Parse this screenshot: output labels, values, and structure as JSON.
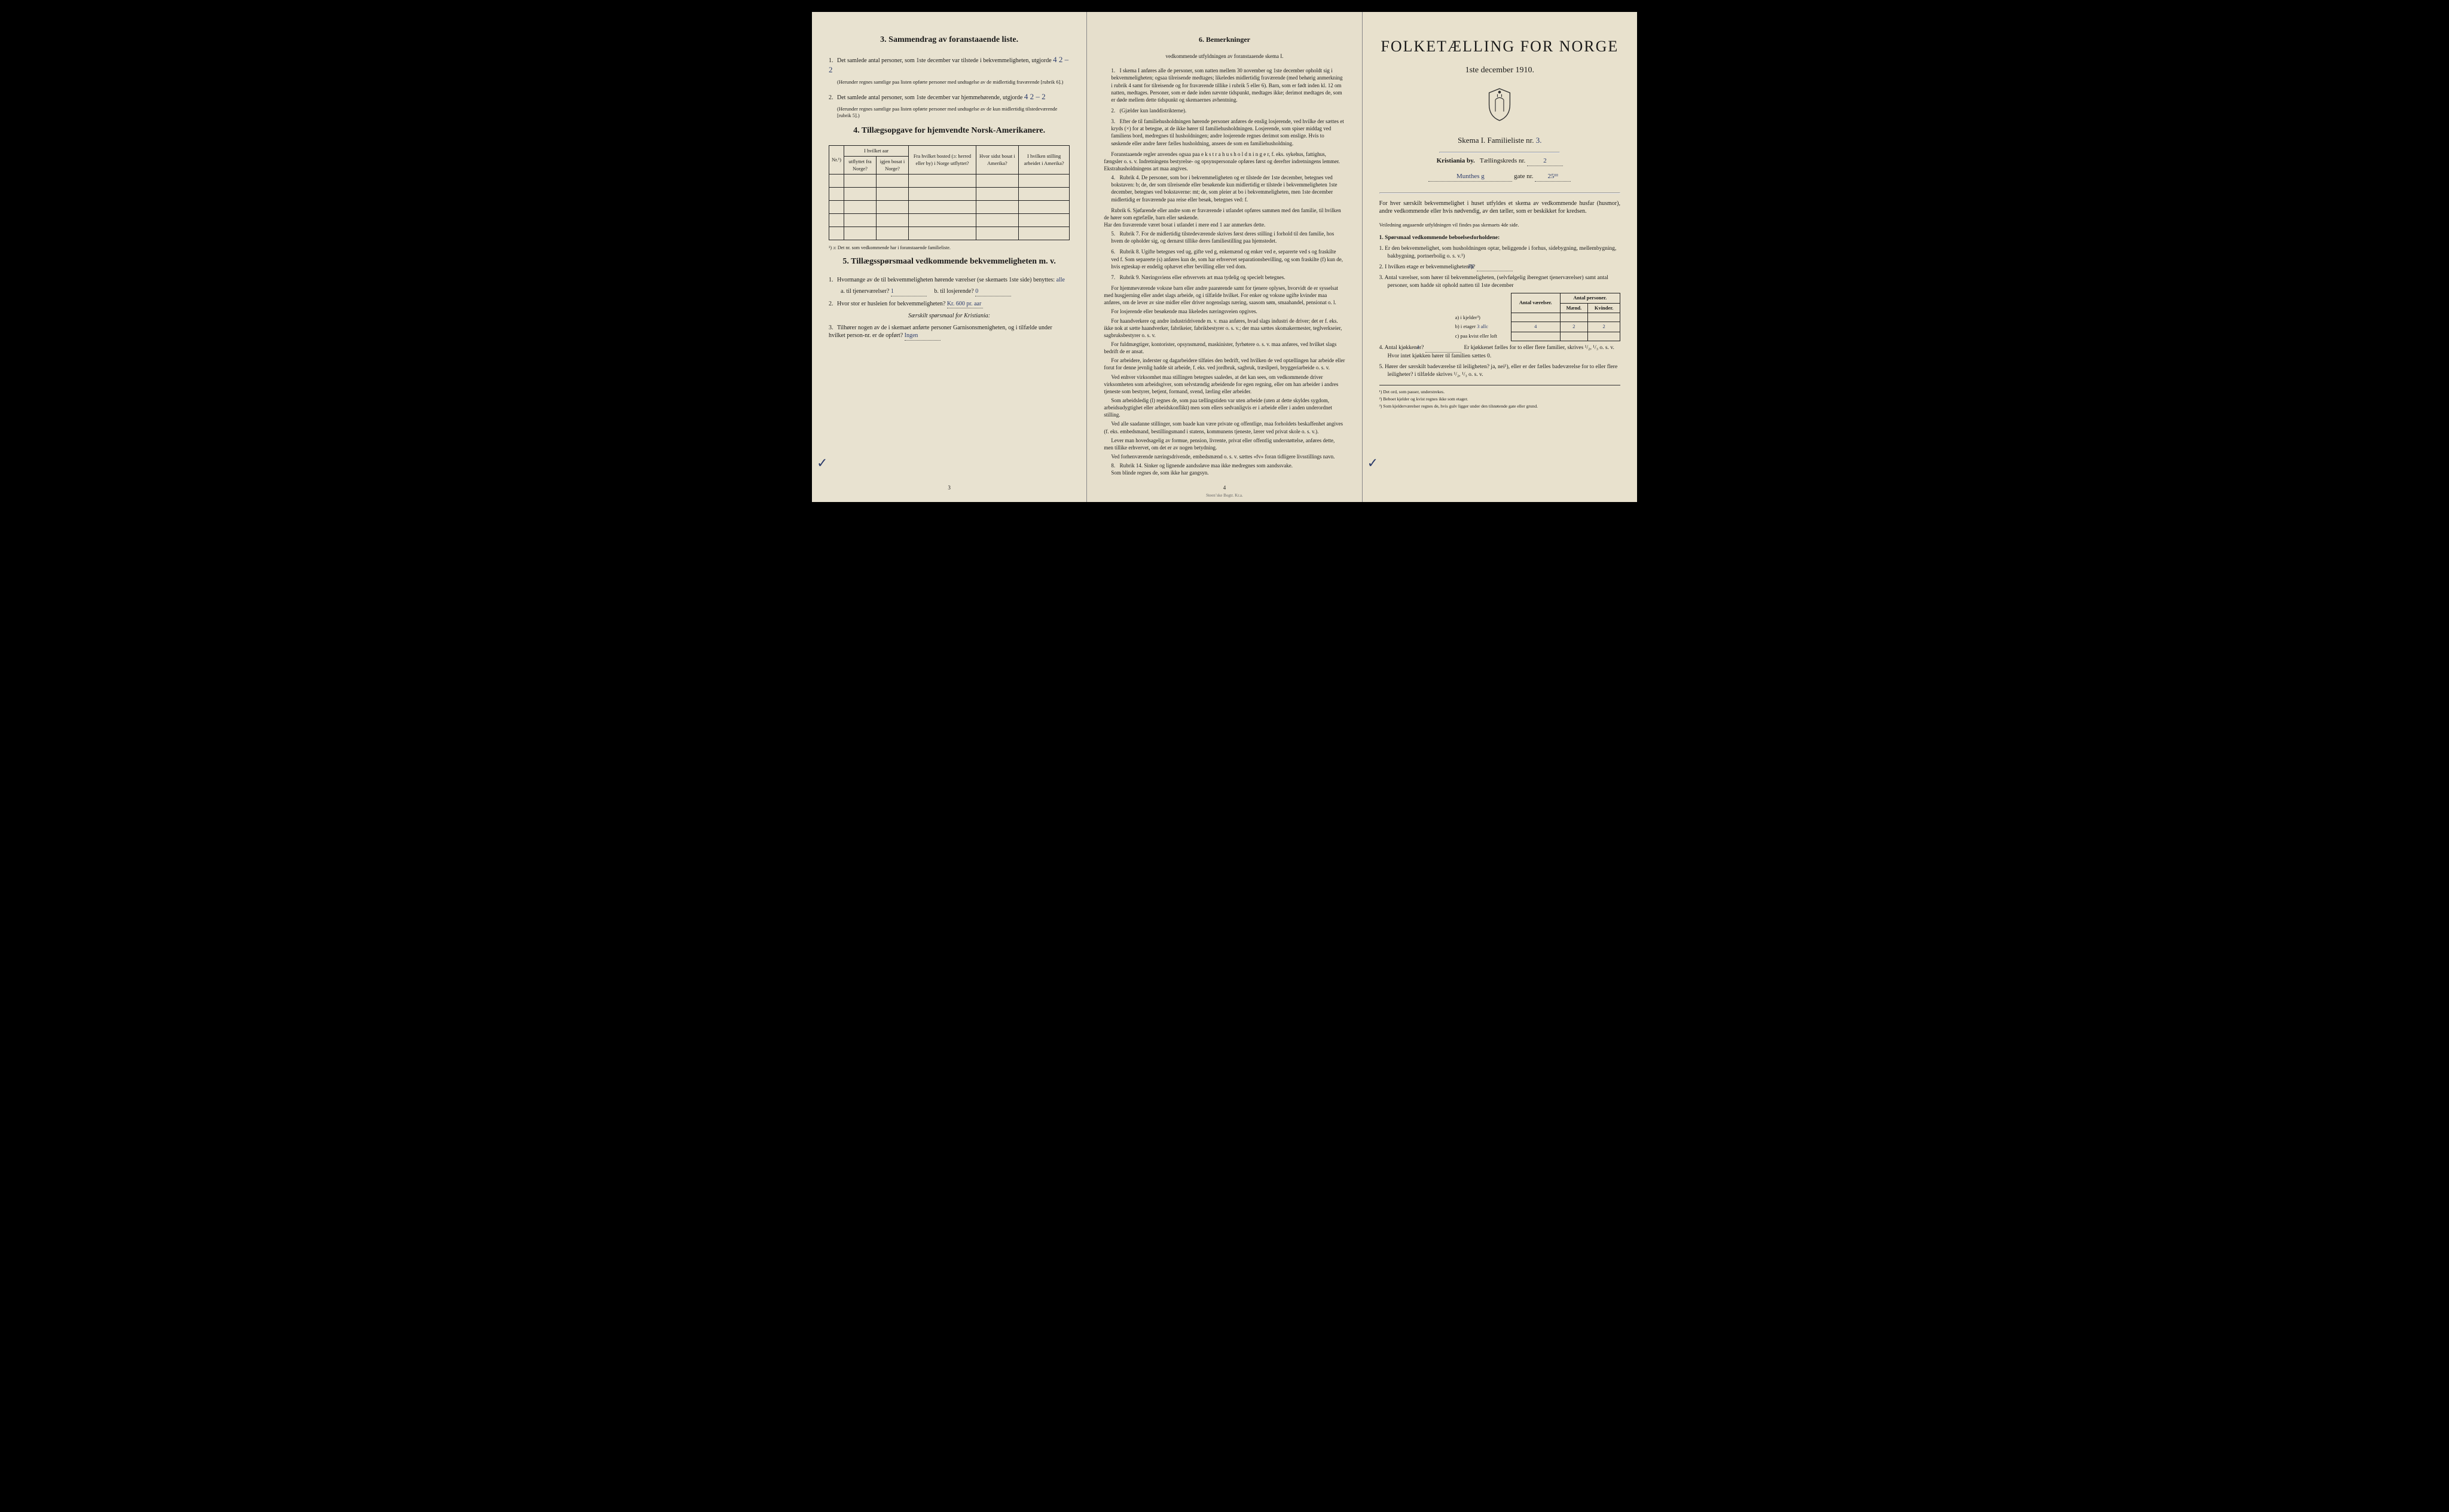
{
  "page_left": {
    "sec3": {
      "title": "3.   Sammendrag av foranstaaende liste.",
      "q1": "Det samlede antal personer, som 1ste december var tilstede i bekvemmeligheten, utgjorde",
      "q1_fill": "4       2 – 2",
      "q1_note": "(Herunder regnes samtlige paa listen opførte personer med undtagelse av de midlertidig fraværende [rubrik 6].)",
      "q2": "Det samlede antal personer, som 1ste december var hjemmehørende, utgjorde",
      "q2_fill": "4       2 – 2",
      "q2_note": "(Herunder regnes samtlige paa listen opførte personer med undtagelse av de kun midlertidig tilstedeværende [rubrik 5].)"
    },
    "sec4": {
      "title": "4.   Tillægsopgave for hjemvendte Norsk-Amerikanere.",
      "col_nr": "Nr.¹)",
      "cols": {
        "a": "I hvilket aar",
        "a1": "utflyttet fra Norge?",
        "a2": "igjen bosat i Norge?",
        "b": "Fra hvilket bosted (ɔ: herred eller by) i Norge utflyttet?",
        "c": "Hvor sidst bosat i Amerika?",
        "d": "I hvilken stilling arbeidet i Amerika?"
      },
      "footnote": "¹) ɔ: Det nr. som vedkommende har i foranstaaende familieliste."
    },
    "sec5": {
      "title": "5.   Tillægsspørsmaal vedkommende bekvemmeligheten m. v.",
      "q1": "Hvormange av de til bekvemmeligheten hørende værelser (se skemaets 1ste side) benyttes:",
      "q1_fill": "alle",
      "q1a": "a. til tjenerværelser?",
      "q1a_fill": "1",
      "q1b": "b. til losjerende?",
      "q1b_fill": "0",
      "q2": "Hvor stor er husleien for bekvemmeligheten?",
      "q2_fill": "Kr. 600 pr. aar",
      "q2_note": "Særskilt spørsmaal for Kristiania:",
      "q3": "Tilhører nogen av de i skemaet anførte personer Garnisonsmenigheten, og i tilfælde under hvilket person-nr. er de opført?",
      "q3_fill": "Ingen"
    },
    "pagenum": "3"
  },
  "page_middle": {
    "sec6": {
      "title": "6.   Bemerkninger",
      "subtitle": "vedkommende utfyldningen av foranstaaende skema I.",
      "items": [
        {
          "n": "1.",
          "text": "I skema I anføres alle de personer, som natten mellem 30 november og 1ste december opholdt sig i bekvemmeligheten; ogsaa tilreisende medtages; likeledes midlertidig fraværende (med behørig anmerkning i rubrik 4 samt for tilreisende og for fraværende tillike i rubrik 5 eller 6). Barn, som er født inden kl. 12 om natten, medtages. Personer, som er døde inden nævnte tidspunkt, medtages ikke; derimot medtages de, som er døde mellem dette tidspunkt og skemaernes avhentning."
        },
        {
          "n": "2.",
          "text": "(Gjælder kun landdistrikterne)."
        },
        {
          "n": "3.",
          "text": "Efter de til familiehusholdningen hørende personer anføres de enslig losjerende, ved hvilke der sættes et kryds (×) for at betegne, at de ikke hører til familiehusholdningen. Losjerende, som spiser middag ved familiens bord, medregnes til husholdningen; andre losjerende regnes derimot som enslige. Hvis to søskende eller andre fører fælles husholdning, ansees de som en familiehusholdning.",
          "extra": "Foranstaaende regler anvendes ogsaa paa e k s t r a h u s h o l d n i n g e r, f. eks. sykehus, fattighus, fængsler o. s. v. Indretningens bestyrelse- og opsynspersonale opføres først og derefter indretningens lemmer. Ekstrahusholdningens art maa angives."
        },
        {
          "n": "4.",
          "text": "Rubrik 4. De personer, som bor i bekvemmeligheten og er tilstede der 1ste december, betegnes ved bokstaven: b; de, der som tilreisende eller besøkende kun midlertidig er tilstede i bekvemmeligheten 1ste december, betegnes ved bokstaverne: mt; de, som pleier at bo i bekvemmeligheten, men 1ste december midlertidig er fraværende paa reise eller besøk, betegnes ved: f.",
          "extra": "Rubrik 6. Sjøfarende eller andre som er fraværende i utlandet opføres sammen med den familie, til hvilken de hører som egtefælle, barn eller søskende.\nHar den fraværende været bosat i utlandet i mere end 1 aar anmerkes dette."
        },
        {
          "n": "5.",
          "text": "Rubrik 7. For de midlertidig tilstedeværende skrives først deres stilling i forhold til den familie, hos hvem de opholder sig, og dernæst tillike deres familiestilling paa hjemstedet."
        },
        {
          "n": "6.",
          "text": "Rubrik 8. Ugifte betegnes ved ug, gifte ved g, enkemænd og enker ved e, separerte ved s og fraskilte ved f. Som separerte (s) anføres kun de, som har erhvervet separationsbevilling, og som fraskilte (f) kun de, hvis egteskap er endelig ophævet efter bevilling eller ved dom."
        },
        {
          "n": "7.",
          "text": "Rubrik 9. Næringsviens eller erhvervets art maa tydelig og specielt betegnes.",
          "bullets": [
            "For hjemmeværende voksne barn eller andre paarørende samt for tjenere oplyses, hvorvidt de er sysselsat med husgjerning eller andet slags arbeide, og i tilfælde hvilket. For enker og voksne ugifte kvinder maa anføres, om de lever av sine midler eller driver nogenslags næring, saasom søm, smaahandel, pensionat o. l.",
            "For losjerende eller besøkende maa likeledes næringsveien opgives.",
            "For haandverkere og andre industridrivende m. v. maa anføres, hvad slags industri de driver; det er f. eks. ikke nok at sætte haandverker, fabrikeier, fabrikbestyrer o. s. v.; der maa sættes skomakermester, teglverkseier, sagbruksbestyrer o. s. v.",
            "For fuldmægtiger, kontorister, opsynsmænd, maskinister, fyrbøtere o. s. v. maa anføres, ved hvilket slags bedrift de er ansat.",
            "For arbeidere, inderster og dagarbeidere tilføies den bedrift, ved hvilken de ved optællingen har arbeide eller forut for denne jevnlig hadde sit arbeide, f. eks. ved jordbruk, sagbruk, træsliperi, bryggeriarbeide o. s. v.",
            "Ved enhver virksomhet maa stillingen betegnes saaledes, at det kan sees, om vedkommende driver virksomheten som arbeidsgiver, som selvstændig arbeidende for egen regning, eller om han arbeider i andres tjeneste som bestyrer, betjent, formand, svend, lærling eller arbeider.",
            "Som arbeidsledig (l) regnes de, som paa tællingstiden var uten arbeide (uten at dette skyldes sygdom, arbeidsudygtighet eller arbeidskonflikt) men som ellers sedvanligvis er i arbeide eller i anden underordnet stilling.",
            "Ved alle saadanne stillinger, som baade kan være private og offentlige, maa forholdets beskaffenhet angives (f. eks. embedsmand, bestillingsmand i statens, kommunens tjeneste, lærer ved privat skole o. s. v.).",
            "Lever man hovedsagelig av formue, pension, livrente, privat eller offentlig understøttelse, anføres dette, men tillike erhvervet, om det er av nogen betydning.",
            "Ved forhenværende næringsdrivende, embedsmænd o. s. v. sættes «fv» foran tidligere livsstillings navn."
          ]
        },
        {
          "n": "8.",
          "text": "Rubrik 14. Sinker og lignende aandssløve maa ikke medregnes som aandssvake.\nSom blinde regnes de, som ikke har gangsyn."
        }
      ]
    },
    "pagenum": "4",
    "printer": "Steenʼske Bogtr.   Kr.a."
  },
  "page_right": {
    "title": "FOLKETÆLLING FOR NORGE",
    "date": "1ste december 1910.",
    "skema_line": "Skema I.   Familieliste nr.",
    "skema_fill": "3.",
    "city": "Kristiania by.",
    "krets_label": "Tællingskreds nr.",
    "krets_fill": "2",
    "street_fill": "Munthes g",
    "gate_label": "gate nr.",
    "gate_fill": "25ᴵᴵᴵ",
    "intro": "For hver særskilt bekvemmelighet i huset utfyldes et skema av vedkommende husfar (husmor), andre vedkommende eller hvis nødvendig, av den tæller, som er beskikket for kredsen.",
    "intro_note": "Veiledning angaaende utfyldningen vil findes paa skemaets 4de side.",
    "sec1_title": "1.  Spørsmaal vedkommende beboelsesforholdene:",
    "q1": "Er den bekvemmelighet, som husholdningen optar, beliggende i forhus, sidebygning, mellembygning, bakbygning, portnerbolig o. s. v.¹)",
    "q2": "I hvilken etage er bekvemmeligheten²)?",
    "q2_fill": "III",
    "q3": "Antal værelser, som hører til bekvemmeligheten, (selvfølgelig iberegnet tjenerværelser) samt antal personer, som hadde sit ophold natten til 1ste december",
    "table": {
      "h_rooms": "Antal værelser.",
      "h_persons": "Antal personer.",
      "h_m": "Mænd.",
      "h_k": "Kvinder.",
      "r_a": "a) i kjelder³)",
      "r_b": "b) i etager",
      "r_b_fill": "3 allc",
      "r_c": "c) paa kvist eller loft",
      "v_rooms": "4",
      "v_m": "2",
      "v_k": "2"
    },
    "q4": "Antal kjøkkener?",
    "q4_fill": "1",
    "q4_rest": "Er kjøkkenet fælles for to eller flere familier, skrives ¹/₂, ¹/₃ o. s. v. Hvor intet kjøkken hører til familien sættes 0.",
    "q5": "Hører der særskilt badeværelse til leiligheten? ja, nei¹), eller er der fælles badeværelse for to eller flere leiligheter? i tilfælde skrives ¹/₂, ¹/₃ o. s. v.",
    "q5_fill": "ja",
    "footnotes": [
      "¹) Det ord, som passer, understrekes.",
      "²) Beboet kjelder og kvist regnes ikke som etager.",
      "³) Som kjelderværelser regnes de, hvis gulv ligger under den tilstøtende gate eller grund."
    ]
  }
}
